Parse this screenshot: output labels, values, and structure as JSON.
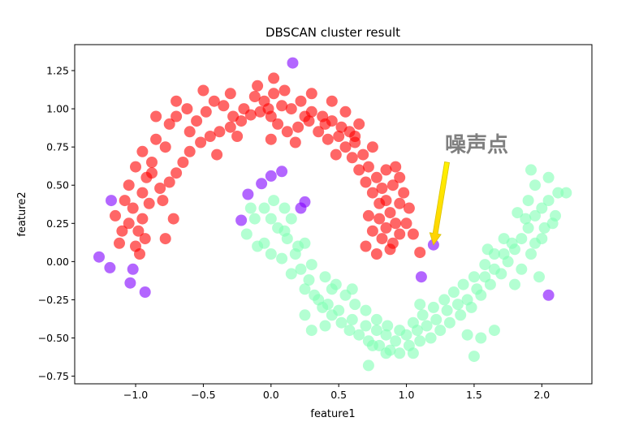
{
  "chart_data": {
    "type": "scatter",
    "title": "DBSCAN cluster result",
    "xlabel": "feature1",
    "ylabel": "feature2",
    "xlim": [
      -1.45,
      2.37
    ],
    "ylim": [
      -0.8,
      1.42
    ],
    "xticks": [
      -1.0,
      -0.5,
      0.0,
      0.5,
      1.0,
      1.5,
      2.0
    ],
    "xtick_labels": [
      "−1.0",
      "−0.5",
      "0.0",
      "0.5",
      "1.0",
      "1.5",
      "2.0"
    ],
    "yticks": [
      -0.75,
      -0.5,
      -0.25,
      0.0,
      0.25,
      0.5,
      0.75,
      1.0,
      1.25
    ],
    "ytick_labels": [
      "−0.75",
      "−0.50",
      "−0.25",
      "0.00",
      "0.25",
      "0.50",
      "0.75",
      "1.00",
      "1.25"
    ],
    "grid": false,
    "legend": "none",
    "annotation": {
      "text": "噪声点",
      "xy": [
        1.2,
        0.11
      ],
      "xytext": [
        1.3,
        0.65
      ],
      "arrow_color": "#ffeb00"
    },
    "series": [
      {
        "color": "#ff0000",
        "shape": "upper moon",
        "points": [
          [
            -1.0,
            0.1
          ],
          [
            -0.98,
            0.2
          ],
          [
            -1.02,
            0.35
          ],
          [
            -0.95,
            0.45
          ],
          [
            -0.92,
            0.55
          ],
          [
            -0.88,
            0.65
          ],
          [
            -0.85,
            0.8
          ],
          [
            -0.78,
            0.75
          ],
          [
            -0.75,
            0.9
          ],
          [
            -0.7,
            0.95
          ],
          [
            -0.62,
            1.0
          ],
          [
            -0.55,
            0.92
          ],
          [
            -0.48,
            0.98
          ],
          [
            -0.42,
            1.05
          ],
          [
            -0.35,
            1.02
          ],
          [
            -0.28,
            0.95
          ],
          [
            -0.2,
            1.0
          ],
          [
            -0.12,
            1.08
          ],
          [
            -0.05,
            1.05
          ],
          [
            0.02,
            1.1
          ],
          [
            0.08,
            1.02
          ],
          [
            0.15,
            1.0
          ],
          [
            0.22,
            1.05
          ],
          [
            0.3,
            0.98
          ],
          [
            0.38,
            0.95
          ],
          [
            0.45,
            0.92
          ],
          [
            0.52,
            0.88
          ],
          [
            0.58,
            0.85
          ],
          [
            0.62,
            0.78
          ],
          [
            0.68,
            0.7
          ],
          [
            0.72,
            0.62
          ],
          [
            0.78,
            0.55
          ],
          [
            0.82,
            0.48
          ],
          [
            0.85,
            0.4
          ],
          [
            0.88,
            0.32
          ],
          [
            0.92,
            0.25
          ],
          [
            0.95,
            0.18
          ],
          [
            0.9,
            0.12
          ],
          [
            0.82,
            0.15
          ],
          [
            0.75,
            0.2
          ],
          [
            0.7,
            0.1
          ],
          [
            0.78,
            0.05
          ],
          [
            0.88,
            0.08
          ],
          [
            1.0,
            0.25
          ],
          [
            1.05,
            0.18
          ],
          [
            1.02,
            0.35
          ],
          [
            0.98,
            0.45
          ],
          [
            0.95,
            0.55
          ],
          [
            0.92,
            0.62
          ],
          [
            1.1,
            0.06
          ],
          [
            -1.15,
            0.3
          ],
          [
            -1.1,
            0.2
          ],
          [
            -1.12,
            0.12
          ],
          [
            -1.05,
            0.5
          ],
          [
            -1.08,
            0.4
          ],
          [
            -0.95,
            0.28
          ],
          [
            -0.9,
            0.38
          ],
          [
            -0.82,
            0.48
          ],
          [
            -0.75,
            0.52
          ],
          [
            -0.7,
            0.58
          ],
          [
            -0.65,
            0.65
          ],
          [
            -0.6,
            0.72
          ],
          [
            -0.52,
            0.78
          ],
          [
            -0.45,
            0.82
          ],
          [
            -0.38,
            0.85
          ],
          [
            -0.3,
            0.88
          ],
          [
            -0.22,
            0.92
          ],
          [
            -0.15,
            0.96
          ],
          [
            -0.08,
            0.98
          ],
          [
            0.0,
            0.95
          ],
          [
            0.05,
            0.9
          ],
          [
            0.12,
            0.85
          ],
          [
            0.2,
            0.88
          ],
          [
            0.28,
            0.92
          ],
          [
            0.35,
            0.85
          ],
          [
            0.42,
            0.8
          ],
          [
            0.5,
            0.82
          ],
          [
            0.55,
            0.75
          ],
          [
            0.6,
            0.68
          ],
          [
            0.65,
            0.6
          ],
          [
            0.7,
            0.52
          ],
          [
            0.75,
            0.45
          ],
          [
            0.8,
            0.38
          ],
          [
            0.85,
            0.22
          ],
          [
            0.8,
            0.28
          ],
          [
            -0.85,
            0.95
          ],
          [
            -0.7,
            1.05
          ],
          [
            -0.5,
            1.12
          ],
          [
            -0.3,
            1.1
          ],
          [
            -0.1,
            1.15
          ],
          [
            0.1,
            1.12
          ],
          [
            0.3,
            1.1
          ],
          [
            0.45,
            1.05
          ],
          [
            0.55,
            0.98
          ],
          [
            0.65,
            0.9
          ],
          [
            -0.95,
            0.72
          ],
          [
            -0.88,
            0.58
          ],
          [
            -0.8,
            0.4
          ],
          [
            -0.72,
            0.28
          ],
          [
            -0.78,
            0.15
          ],
          [
            -0.6,
            0.85
          ],
          [
            -0.4,
            0.7
          ],
          [
            -0.25,
            0.82
          ],
          [
            0.0,
            0.8
          ],
          [
            0.18,
            0.78
          ],
          [
            0.4,
            0.9
          ],
          [
            0.62,
            0.82
          ],
          [
            0.75,
            0.75
          ],
          [
            0.85,
            0.6
          ],
          [
            0.9,
            0.5
          ],
          [
            -1.0,
            0.62
          ],
          [
            -0.97,
            0.05
          ],
          [
            -0.93,
            0.15
          ],
          [
            -1.05,
            0.25
          ],
          [
            0.02,
            1.2
          ],
          [
            -0.02,
            1.0
          ],
          [
            0.25,
            0.95
          ],
          [
            0.48,
            0.7
          ],
          [
            0.95,
            0.38
          ],
          [
            0.72,
            0.3
          ]
        ]
      },
      {
        "color": "#80ffb4",
        "shape": "lower moon",
        "points": [
          [
            -0.18,
            0.18
          ],
          [
            -0.12,
            0.28
          ],
          [
            -0.05,
            0.35
          ],
          [
            0.02,
            0.4
          ],
          [
            0.1,
            0.35
          ],
          [
            0.05,
            0.22
          ],
          [
            0.12,
            0.15
          ],
          [
            0.18,
            0.05
          ],
          [
            0.22,
            -0.05
          ],
          [
            0.28,
            -0.12
          ],
          [
            0.32,
            -0.22
          ],
          [
            0.38,
            -0.3
          ],
          [
            0.45,
            -0.35
          ],
          [
            0.52,
            -0.4
          ],
          [
            0.58,
            -0.45
          ],
          [
            0.65,
            -0.48
          ],
          [
            0.72,
            -0.52
          ],
          [
            0.8,
            -0.55
          ],
          [
            0.88,
            -0.58
          ],
          [
            0.95,
            -0.6
          ],
          [
            1.02,
            -0.55
          ],
          [
            1.1,
            -0.52
          ],
          [
            1.18,
            -0.5
          ],
          [
            1.25,
            -0.45
          ],
          [
            1.32,
            -0.4
          ],
          [
            1.4,
            -0.35
          ],
          [
            1.48,
            -0.3
          ],
          [
            1.55,
            -0.22
          ],
          [
            1.62,
            -0.15
          ],
          [
            1.7,
            -0.08
          ],
          [
            1.75,
            0.0
          ],
          [
            1.8,
            0.08
          ],
          [
            1.85,
            0.15
          ],
          [
            1.9,
            0.22
          ],
          [
            1.95,
            0.3
          ],
          [
            2.0,
            0.35
          ],
          [
            2.05,
            0.4
          ],
          [
            2.1,
            0.3
          ],
          [
            2.02,
            0.22
          ],
          [
            1.95,
            0.12
          ],
          [
            2.05,
            0.55
          ],
          [
            1.95,
            0.5
          ],
          [
            1.9,
            0.4
          ],
          [
            1.88,
            0.28
          ],
          [
            1.82,
            0.32
          ],
          [
            -0.05,
            0.12
          ],
          [
            0.0,
            0.05
          ],
          [
            0.08,
            0.02
          ],
          [
            0.15,
            -0.08
          ],
          [
            0.25,
            -0.18
          ],
          [
            0.35,
            -0.25
          ],
          [
            0.42,
            -0.28
          ],
          [
            0.5,
            -0.32
          ],
          [
            0.6,
            -0.38
          ],
          [
            0.7,
            -0.42
          ],
          [
            0.78,
            -0.45
          ],
          [
            0.85,
            -0.48
          ],
          [
            0.92,
            -0.52
          ],
          [
            1.0,
            -0.48
          ],
          [
            1.08,
            -0.45
          ],
          [
            1.15,
            -0.42
          ],
          [
            1.22,
            -0.38
          ],
          [
            1.3,
            -0.32
          ],
          [
            1.38,
            -0.28
          ],
          [
            1.45,
            -0.25
          ],
          [
            1.52,
            -0.18
          ],
          [
            1.58,
            -0.1
          ],
          [
            1.65,
            -0.05
          ],
          [
            1.72,
            0.05
          ],
          [
            1.78,
            0.12
          ],
          [
            0.2,
            0.1
          ],
          [
            0.3,
            -0.02
          ],
          [
            0.4,
            -0.1
          ],
          [
            0.48,
            -0.15
          ],
          [
            0.55,
            -0.22
          ],
          [
            0.62,
            -0.28
          ],
          [
            0.7,
            -0.32
          ],
          [
            0.78,
            -0.38
          ],
          [
            0.86,
            -0.42
          ],
          [
            0.95,
            -0.45
          ],
          [
            1.05,
            -0.4
          ],
          [
            1.12,
            -0.35
          ],
          [
            1.2,
            -0.3
          ],
          [
            1.28,
            -0.25
          ],
          [
            1.35,
            -0.2
          ],
          [
            1.42,
            -0.15
          ],
          [
            1.5,
            -0.1
          ],
          [
            1.58,
            -0.02
          ],
          [
            1.65,
            0.05
          ],
          [
            1.72,
            0.15
          ],
          [
            2.12,
            0.45
          ],
          [
            2.18,
            0.45
          ],
          [
            2.0,
            0.15
          ],
          [
            1.92,
            0.05
          ],
          [
            1.85,
            -0.05
          ],
          [
            0.25,
            -0.35
          ],
          [
            0.3,
            -0.45
          ],
          [
            0.72,
            -0.68
          ],
          [
            0.75,
            -0.55
          ],
          [
            0.85,
            -0.6
          ],
          [
            1.5,
            -0.62
          ],
          [
            1.65,
            -0.45
          ],
          [
            1.55,
            -0.5
          ],
          [
            1.45,
            -0.48
          ],
          [
            1.1,
            -0.28
          ],
          [
            -0.15,
            0.35
          ],
          [
            -0.1,
            0.1
          ],
          [
            0.0,
            0.28
          ],
          [
            0.1,
            0.2
          ],
          [
            0.15,
            0.28
          ],
          [
            0.25,
            0.12
          ],
          [
            0.45,
            -0.18
          ],
          [
            0.6,
            -0.18
          ],
          [
            1.8,
            -0.15
          ],
          [
            2.08,
            0.25
          ],
          [
            1.92,
            0.6
          ],
          [
            1.98,
            -0.1
          ],
          [
            1.6,
            0.08
          ],
          [
            0.4,
            -0.42
          ],
          [
            1.05,
            -0.6
          ]
        ]
      },
      {
        "color": "#8000ff",
        "shape": "noise",
        "points": [
          [
            0.16,
            1.3
          ],
          [
            -1.18,
            0.4
          ],
          [
            -1.27,
            0.03
          ],
          [
            -1.19,
            -0.04
          ],
          [
            -1.02,
            -0.05
          ],
          [
            -1.04,
            -0.14
          ],
          [
            -0.93,
            -0.2
          ],
          [
            -0.22,
            0.27
          ],
          [
            -0.17,
            0.44
          ],
          [
            -0.07,
            0.51
          ],
          [
            0.0,
            0.56
          ],
          [
            0.08,
            0.59
          ],
          [
            0.22,
            0.35
          ],
          [
            0.25,
            0.39
          ],
          [
            1.2,
            0.11
          ],
          [
            1.11,
            -0.1
          ],
          [
            2.05,
            -0.22
          ]
        ]
      }
    ]
  }
}
